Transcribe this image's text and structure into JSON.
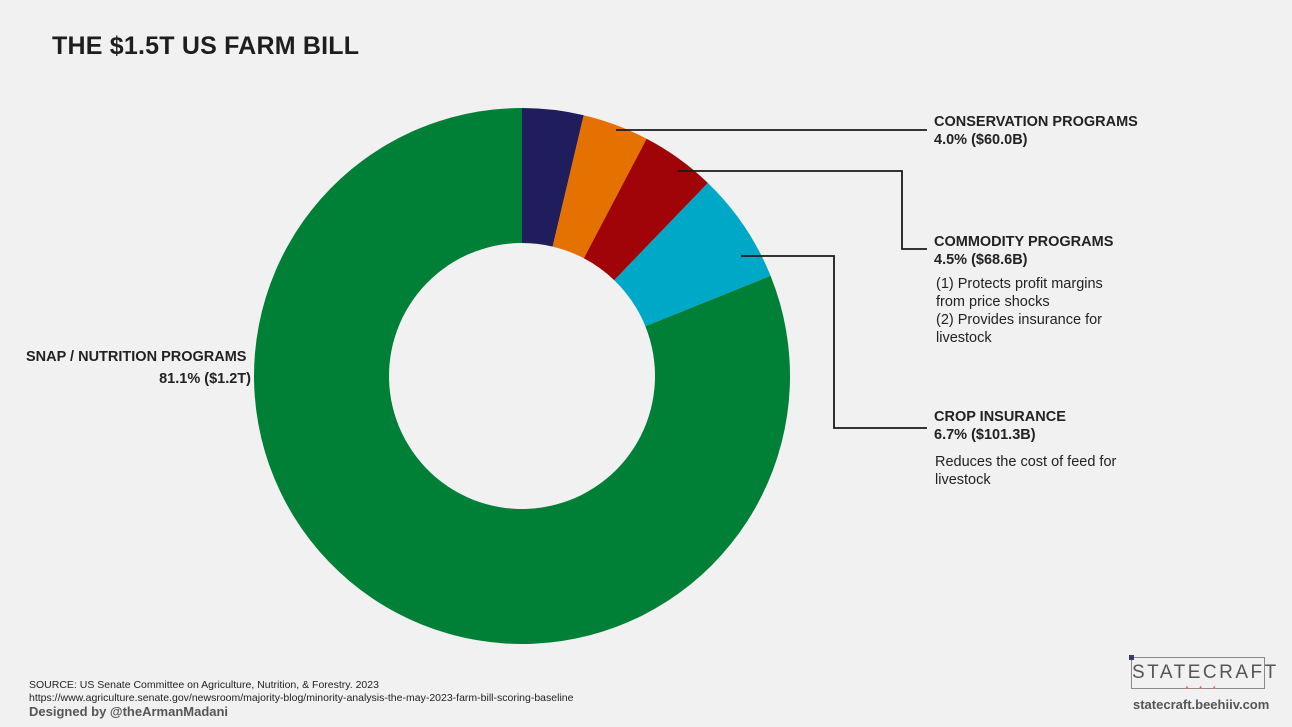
{
  "title": "THE $1.5T US FARM BILL",
  "chart_data": {
    "type": "pie",
    "variant": "donut",
    "title": "THE $1.5T US FARM BILL",
    "slices": [
      {
        "name": "",
        "value": 3.7,
        "color": "#201d5c"
      },
      {
        "name": "CONSERVATION PROGRAMS",
        "value": 4.0,
        "amount": "$60.0B",
        "label": "4.0% ($60.0B)",
        "color": "#e57200"
      },
      {
        "name": "COMMODITY PROGRAMS",
        "value": 4.5,
        "amount": "$68.6B",
        "label": "4.5% ($68.6B)",
        "color": "#a00408"
      },
      {
        "name": "CROP INSURANCE",
        "value": 6.7,
        "amount": "$101.3B",
        "label": "6.7% ($101.3B)",
        "color": "#00a8c8"
      },
      {
        "name": "SNAP / NUTRITION PROGRAMS",
        "value": 81.1,
        "amount": "$1.2T",
        "label": "81.1% ($1.2T)",
        "color": "#008037"
      }
    ]
  },
  "labels": {
    "conservation": {
      "name": "CONSERVATION PROGRAMS",
      "value": "4.0% ($60.0B)"
    },
    "commodity": {
      "name": "COMMODITY PROGRAMS",
      "value": "4.5% ($68.6B)",
      "notes": [
        "(1) Protects profit margins",
        "from price shocks",
        "(2) Provides insurance for",
        "livestock"
      ]
    },
    "crop": {
      "name": "CROP INSURANCE",
      "value": "6.7% ($101.3B)",
      "notes": [
        "Reduces the cost of feed for",
        "livestock"
      ]
    },
    "snap": {
      "name": "SNAP / NUTRITION PROGRAMS",
      "value": "81.1% ($1.2T)"
    }
  },
  "footer": {
    "source_line1": "SOURCE: US Senate Committee on Agriculture, Nutrition, & Forestry. 2023",
    "source_line2": "https://www.agriculture.senate.gov/newsroom/majority-blog/minority-analysis-the-may-2023-farm-bill-scoring-baseline",
    "designed_by": "Designed by @theArmanMadani",
    "logo_text": "STATECRAFT",
    "logo_mark": "▲ ▲ ▲",
    "site": "statecraft.beehiiv.com"
  },
  "colors": {
    "background": "#f1f1f1",
    "leader_line": "#1a1a1a"
  }
}
